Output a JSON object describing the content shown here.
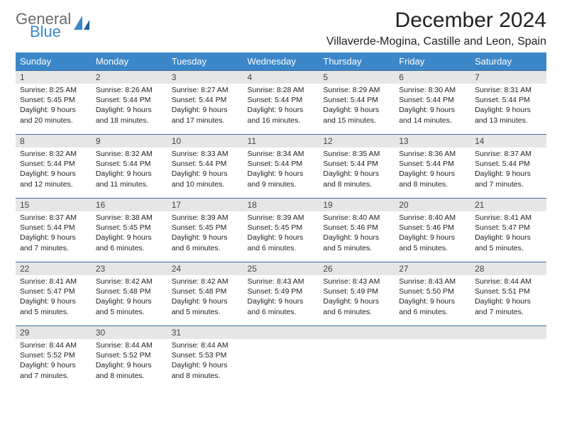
{
  "brand": {
    "line1": "General",
    "line2": "Blue"
  },
  "colors": {
    "header_bg": "#3b87c8",
    "header_text": "#ffffff",
    "daynum_bg": "#e6e6e6",
    "daynum_border": "#3b6ea0",
    "text": "#222222",
    "logo_gray": "#6b6b6b",
    "logo_blue": "#3b87c8"
  },
  "title": "December 2024",
  "location": "Villaverde-Mogina, Castille and Leon, Spain",
  "weekdays": [
    "Sunday",
    "Monday",
    "Tuesday",
    "Wednesday",
    "Thursday",
    "Friday",
    "Saturday"
  ],
  "weeks": [
    [
      {
        "n": 1,
        "sr": "8:25 AM",
        "ss": "5:45 PM",
        "dl": "9 hours and 20 minutes."
      },
      {
        "n": 2,
        "sr": "8:26 AM",
        "ss": "5:44 PM",
        "dl": "9 hours and 18 minutes."
      },
      {
        "n": 3,
        "sr": "8:27 AM",
        "ss": "5:44 PM",
        "dl": "9 hours and 17 minutes."
      },
      {
        "n": 4,
        "sr": "8:28 AM",
        "ss": "5:44 PM",
        "dl": "9 hours and 16 minutes."
      },
      {
        "n": 5,
        "sr": "8:29 AM",
        "ss": "5:44 PM",
        "dl": "9 hours and 15 minutes."
      },
      {
        "n": 6,
        "sr": "8:30 AM",
        "ss": "5:44 PM",
        "dl": "9 hours and 14 minutes."
      },
      {
        "n": 7,
        "sr": "8:31 AM",
        "ss": "5:44 PM",
        "dl": "9 hours and 13 minutes."
      }
    ],
    [
      {
        "n": 8,
        "sr": "8:32 AM",
        "ss": "5:44 PM",
        "dl": "9 hours and 12 minutes."
      },
      {
        "n": 9,
        "sr": "8:32 AM",
        "ss": "5:44 PM",
        "dl": "9 hours and 11 minutes."
      },
      {
        "n": 10,
        "sr": "8:33 AM",
        "ss": "5:44 PM",
        "dl": "9 hours and 10 minutes."
      },
      {
        "n": 11,
        "sr": "8:34 AM",
        "ss": "5:44 PM",
        "dl": "9 hours and 9 minutes."
      },
      {
        "n": 12,
        "sr": "8:35 AM",
        "ss": "5:44 PM",
        "dl": "9 hours and 8 minutes."
      },
      {
        "n": 13,
        "sr": "8:36 AM",
        "ss": "5:44 PM",
        "dl": "9 hours and 8 minutes."
      },
      {
        "n": 14,
        "sr": "8:37 AM",
        "ss": "5:44 PM",
        "dl": "9 hours and 7 minutes."
      }
    ],
    [
      {
        "n": 15,
        "sr": "8:37 AM",
        "ss": "5:44 PM",
        "dl": "9 hours and 7 minutes."
      },
      {
        "n": 16,
        "sr": "8:38 AM",
        "ss": "5:45 PM",
        "dl": "9 hours and 6 minutes."
      },
      {
        "n": 17,
        "sr": "8:39 AM",
        "ss": "5:45 PM",
        "dl": "9 hours and 6 minutes."
      },
      {
        "n": 18,
        "sr": "8:39 AM",
        "ss": "5:45 PM",
        "dl": "9 hours and 6 minutes."
      },
      {
        "n": 19,
        "sr": "8:40 AM",
        "ss": "5:46 PM",
        "dl": "9 hours and 5 minutes."
      },
      {
        "n": 20,
        "sr": "8:40 AM",
        "ss": "5:46 PM",
        "dl": "9 hours and 5 minutes."
      },
      {
        "n": 21,
        "sr": "8:41 AM",
        "ss": "5:47 PM",
        "dl": "9 hours and 5 minutes."
      }
    ],
    [
      {
        "n": 22,
        "sr": "8:41 AM",
        "ss": "5:47 PM",
        "dl": "9 hours and 5 minutes."
      },
      {
        "n": 23,
        "sr": "8:42 AM",
        "ss": "5:48 PM",
        "dl": "9 hours and 5 minutes."
      },
      {
        "n": 24,
        "sr": "8:42 AM",
        "ss": "5:48 PM",
        "dl": "9 hours and 5 minutes."
      },
      {
        "n": 25,
        "sr": "8:43 AM",
        "ss": "5:49 PM",
        "dl": "9 hours and 6 minutes."
      },
      {
        "n": 26,
        "sr": "8:43 AM",
        "ss": "5:49 PM",
        "dl": "9 hours and 6 minutes."
      },
      {
        "n": 27,
        "sr": "8:43 AM",
        "ss": "5:50 PM",
        "dl": "9 hours and 6 minutes."
      },
      {
        "n": 28,
        "sr": "8:44 AM",
        "ss": "5:51 PM",
        "dl": "9 hours and 7 minutes."
      }
    ],
    [
      {
        "n": 29,
        "sr": "8:44 AM",
        "ss": "5:52 PM",
        "dl": "9 hours and 7 minutes."
      },
      {
        "n": 30,
        "sr": "8:44 AM",
        "ss": "5:52 PM",
        "dl": "9 hours and 8 minutes."
      },
      {
        "n": 31,
        "sr": "8:44 AM",
        "ss": "5:53 PM",
        "dl": "9 hours and 8 minutes."
      },
      null,
      null,
      null,
      null
    ]
  ],
  "labels": {
    "sunrise": "Sunrise:",
    "sunset": "Sunset:",
    "daylight": "Daylight:"
  }
}
